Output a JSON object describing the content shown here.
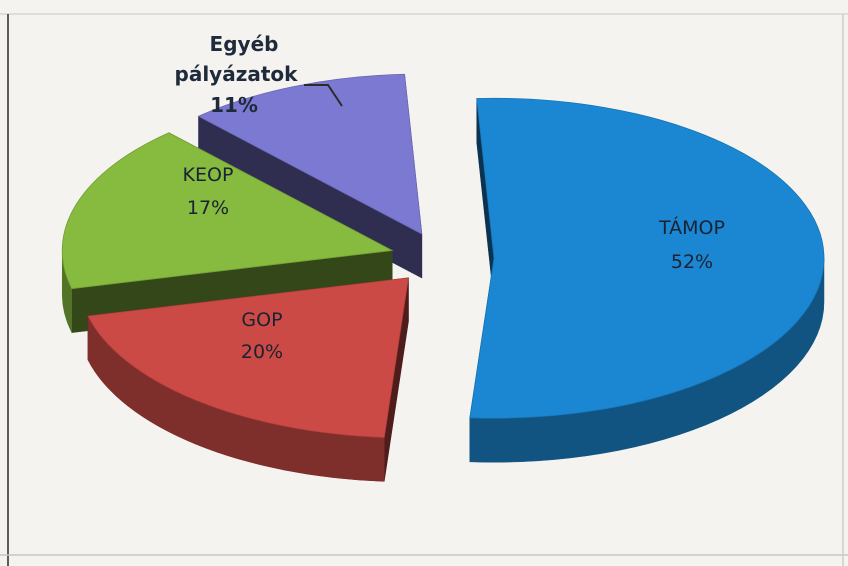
{
  "chart_data": {
    "type": "pie",
    "style": "3d-exploded",
    "title": "",
    "legend": "none",
    "slices": [
      {
        "label": "TÁMOP",
        "percent_label": "52%",
        "value": 52,
        "color": "#1b87d2"
      },
      {
        "label": "GOP",
        "percent_label": "20%",
        "value": 20,
        "color": "#cc4a45"
      },
      {
        "label": "KEOP",
        "percent_label": "17%",
        "value": 17,
        "color": "#86bb3f"
      },
      {
        "label_lines": [
          "Egyéb",
          "pályázatok"
        ],
        "percent_label": "11%",
        "value": 11,
        "color": "#7c79d3"
      }
    ]
  }
}
